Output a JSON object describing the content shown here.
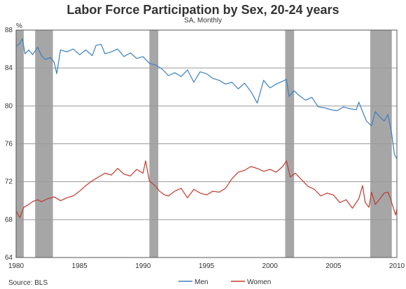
{
  "chart_data": {
    "type": "line",
    "title": "Labor Force Participation by Sex, 20-24 years",
    "subtitle": "SA, Monthly",
    "y_unit": "%",
    "source": "Source: BLS",
    "xlim": [
      1980,
      2010
    ],
    "ylim": [
      64,
      88
    ],
    "y_ticks": [
      64,
      68,
      72,
      76,
      80,
      84,
      88
    ],
    "x_ticks": [
      1980,
      1985,
      1990,
      1995,
      2000,
      2005,
      2010
    ],
    "grid": true,
    "legend_position": "bottom",
    "recessions": [
      [
        1980.0,
        1980.6
      ],
      [
        1981.5,
        1982.9
      ],
      [
        1990.5,
        1991.2
      ],
      [
        2001.2,
        2001.9
      ],
      [
        2007.9,
        2009.6
      ]
    ],
    "series": [
      {
        "name": "Men",
        "color": "#3a7fc1",
        "points": [
          [
            1980.0,
            86.3
          ],
          [
            1980.3,
            86.6
          ],
          [
            1980.5,
            87.1
          ],
          [
            1980.7,
            85.5
          ],
          [
            1981.0,
            85.9
          ],
          [
            1981.3,
            85.4
          ],
          [
            1981.7,
            86.2
          ],
          [
            1982.0,
            85.3
          ],
          [
            1982.3,
            84.9
          ],
          [
            1982.7,
            85.1
          ],
          [
            1983.0,
            84.6
          ],
          [
            1983.2,
            83.4
          ],
          [
            1983.5,
            85.9
          ],
          [
            1984.0,
            85.7
          ],
          [
            1984.5,
            86.0
          ],
          [
            1985.0,
            85.4
          ],
          [
            1985.5,
            85.9
          ],
          [
            1986.0,
            85.3
          ],
          [
            1986.3,
            86.4
          ],
          [
            1986.7,
            86.5
          ],
          [
            1987.0,
            85.5
          ],
          [
            1987.5,
            85.7
          ],
          [
            1988.0,
            86.0
          ],
          [
            1988.5,
            85.2
          ],
          [
            1989.0,
            85.6
          ],
          [
            1989.5,
            85.0
          ],
          [
            1990.0,
            85.2
          ],
          [
            1990.5,
            84.5
          ],
          [
            1991.0,
            84.3
          ],
          [
            1991.5,
            83.9
          ],
          [
            1992.0,
            83.2
          ],
          [
            1992.5,
            83.5
          ],
          [
            1993.0,
            83.1
          ],
          [
            1993.5,
            83.8
          ],
          [
            1994.0,
            82.5
          ],
          [
            1994.5,
            83.6
          ],
          [
            1995.0,
            83.4
          ],
          [
            1995.5,
            82.9
          ],
          [
            1996.0,
            82.7
          ],
          [
            1996.5,
            82.3
          ],
          [
            1997.0,
            82.5
          ],
          [
            1997.5,
            81.8
          ],
          [
            1998.0,
            82.4
          ],
          [
            1998.5,
            81.5
          ],
          [
            1999.0,
            80.3
          ],
          [
            1999.5,
            82.7
          ],
          [
            2000.0,
            81.9
          ],
          [
            2000.5,
            82.3
          ],
          [
            2001.0,
            82.6
          ],
          [
            2001.3,
            82.8
          ],
          [
            2001.5,
            81.0
          ],
          [
            2001.9,
            81.6
          ],
          [
            2002.3,
            81.1
          ],
          [
            2002.8,
            80.6
          ],
          [
            2003.3,
            80.9
          ],
          [
            2003.8,
            79.9
          ],
          [
            2004.3,
            79.8
          ],
          [
            2004.8,
            79.6
          ],
          [
            2005.3,
            79.5
          ],
          [
            2005.8,
            79.9
          ],
          [
            2006.3,
            79.7
          ],
          [
            2006.8,
            79.6
          ],
          [
            2007.0,
            80.4
          ],
          [
            2007.3,
            79.4
          ],
          [
            2007.6,
            78.4
          ],
          [
            2008.0,
            77.9
          ],
          [
            2008.3,
            79.4
          ],
          [
            2008.6,
            78.9
          ],
          [
            2009.0,
            78.4
          ],
          [
            2009.3,
            79.1
          ],
          [
            2009.6,
            77.0
          ],
          [
            2009.8,
            74.9
          ],
          [
            2010.0,
            74.4
          ]
        ]
      },
      {
        "name": "Women",
        "color": "#c0392b",
        "points": [
          [
            1980.0,
            68.9
          ],
          [
            1980.3,
            68.2
          ],
          [
            1980.6,
            69.3
          ],
          [
            1981.0,
            69.6
          ],
          [
            1981.3,
            69.9
          ],
          [
            1981.7,
            70.1
          ],
          [
            1982.0,
            69.9
          ],
          [
            1982.5,
            70.2
          ],
          [
            1983.0,
            70.4
          ],
          [
            1983.5,
            70.0
          ],
          [
            1984.0,
            70.3
          ],
          [
            1984.5,
            70.5
          ],
          [
            1985.0,
            71.0
          ],
          [
            1985.5,
            71.6
          ],
          [
            1986.0,
            72.1
          ],
          [
            1986.5,
            72.5
          ],
          [
            1987.0,
            72.9
          ],
          [
            1987.5,
            72.7
          ],
          [
            1988.0,
            73.4
          ],
          [
            1988.5,
            72.8
          ],
          [
            1989.0,
            72.6
          ],
          [
            1989.5,
            73.3
          ],
          [
            1990.0,
            72.9
          ],
          [
            1990.2,
            74.2
          ],
          [
            1990.5,
            72.1
          ],
          [
            1991.0,
            71.5
          ],
          [
            1991.3,
            71.0
          ],
          [
            1991.7,
            70.6
          ],
          [
            1992.0,
            70.5
          ],
          [
            1992.5,
            71.0
          ],
          [
            1993.0,
            71.3
          ],
          [
            1993.5,
            70.3
          ],
          [
            1994.0,
            71.2
          ],
          [
            1994.5,
            70.8
          ],
          [
            1995.0,
            70.6
          ],
          [
            1995.5,
            71.0
          ],
          [
            1996.0,
            70.9
          ],
          [
            1996.5,
            71.3
          ],
          [
            1997.0,
            72.3
          ],
          [
            1997.5,
            73.0
          ],
          [
            1998.0,
            73.2
          ],
          [
            1998.5,
            73.6
          ],
          [
            1999.0,
            73.4
          ],
          [
            1999.5,
            73.1
          ],
          [
            2000.0,
            73.3
          ],
          [
            2000.5,
            73.0
          ],
          [
            2001.0,
            73.6
          ],
          [
            2001.3,
            74.2
          ],
          [
            2001.6,
            72.5
          ],
          [
            2002.0,
            72.9
          ],
          [
            2002.5,
            72.2
          ],
          [
            2003.0,
            71.5
          ],
          [
            2003.5,
            71.2
          ],
          [
            2004.0,
            70.5
          ],
          [
            2004.5,
            70.8
          ],
          [
            2005.0,
            70.6
          ],
          [
            2005.5,
            69.8
          ],
          [
            2006.0,
            70.1
          ],
          [
            2006.5,
            69.2
          ],
          [
            2007.0,
            70.2
          ],
          [
            2007.3,
            71.6
          ],
          [
            2007.5,
            69.8
          ],
          [
            2007.8,
            69.3
          ],
          [
            2008.0,
            70.9
          ],
          [
            2008.3,
            69.6
          ],
          [
            2008.6,
            70.1
          ],
          [
            2009.0,
            70.8
          ],
          [
            2009.3,
            70.9
          ],
          [
            2009.5,
            70.2
          ],
          [
            2009.7,
            69.3
          ],
          [
            2009.9,
            68.5
          ],
          [
            2010.0,
            69.1
          ]
        ]
      }
    ]
  }
}
